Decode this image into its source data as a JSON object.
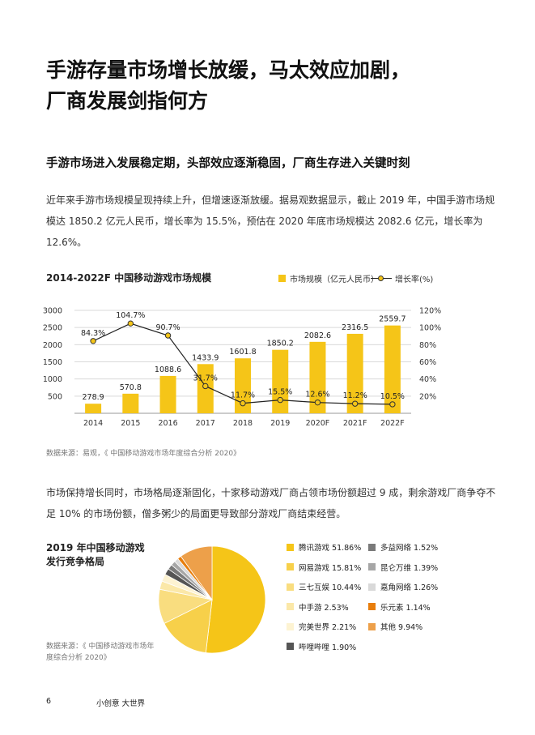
{
  "header": {
    "title_line1": "手游存量市场增长放缓，马太效应加剧，",
    "title_line2": "厂商发展剑指何方"
  },
  "section": {
    "subtitle": "手游市场进入发展稳定期，头部效应逐渐稳固，厂商生存进入关键时刻",
    "paragraph1": "近年来手游市场规模呈现持续上升，但增速逐渐放缓。据易观数据显示，截止 2019 年，中国手游市场规模达 1850.2 亿元人民币，增长率为 15.5%，预估在 2020 年底市场规模达 2082.6 亿元，增长率为 12.6%。",
    "source1": "数据来源：易观，《 中国移动游戏市场年度综合分析 2020》",
    "paragraph2": "市场保持增长同时，市场格局逐渐固化，十家移动游戏厂商占领市场份额超过 9 成，剩余游戏厂商争夺不足 10% 的市场份额，僧多粥少的局面更导致部分游戏厂商结束经营。",
    "source2": "数据来源：《 中国移动游戏市场年度综合分析 2020》"
  },
  "footer": {
    "page": "6",
    "slogan": "小创意  大世界"
  },
  "chart_data": [
    {
      "type": "bar",
      "title": "2014-2022F 中国移动游戏市场规模",
      "categories": [
        "2014",
        "2015",
        "2016",
        "2017",
        "2018",
        "2019",
        "2020F",
        "2021F",
        "2022F"
      ],
      "series": [
        {
          "name": "市场规模（亿元人民币）",
          "type": "bar",
          "axis": "left",
          "values": [
            278.9,
            570.8,
            1088.6,
            1433.9,
            1601.8,
            1850.2,
            2082.6,
            2316.5,
            2559.7
          ],
          "labels": [
            "278.9",
            "570.8",
            "1088.6",
            "1433.9",
            "1601.8",
            "1850.2",
            "2082.6",
            "2316.5",
            "2559.7"
          ]
        },
        {
          "name": "增长率(%)",
          "type": "line",
          "axis": "right",
          "values": [
            84.3,
            104.7,
            90.7,
            31.7,
            11.7,
            15.5,
            12.6,
            11.2,
            10.5
          ],
          "labels": [
            "84.3%",
            "104.7%",
            "90.7%",
            "31.7%",
            "11.7%",
            "15.5%",
            "12.6%",
            "11.2%",
            "10.5%"
          ]
        }
      ],
      "y_left": {
        "ticks": [
          "500",
          "1000",
          "1500",
          "2000",
          "2500",
          "3000"
        ],
        "values": [
          500,
          1000,
          1500,
          2000,
          2500,
          3000
        ],
        "ylim": [
          0,
          3000
        ]
      },
      "y_right": {
        "ticks": [
          "20%",
          "40%",
          "60%",
          "80%",
          "100%",
          "120%"
        ],
        "values": [
          20,
          40,
          60,
          80,
          100,
          120
        ],
        "ylim": [
          0,
          120
        ]
      },
      "grid": true,
      "legend_position": "top-right",
      "colors": {
        "bar": "#f5c518",
        "line": "#222222",
        "marker": "#f5c518"
      }
    },
    {
      "type": "pie",
      "title": "2019 年中国移动游戏发行竞争格局",
      "title_lines": [
        "2019 年中国移动游戏",
        "发行竞争格局"
      ],
      "slices": [
        {
          "label": "腾讯游戏 51.86%",
          "value": 51.86,
          "color": "#f5c518"
        },
        {
          "label": "网易游戏 15.81%",
          "value": 15.81,
          "color": "#f7d04a"
        },
        {
          "label": "三七互娱 10.44%",
          "value": 10.44,
          "color": "#f9dd7f"
        },
        {
          "label": "中手游 2.53%",
          "value": 2.53,
          "color": "#fbe8a8"
        },
        {
          "label": "完美世界 2.21%",
          "value": 2.21,
          "color": "#fdf3d2"
        },
        {
          "label": "哔哩哔哩 1.90%",
          "value": 1.9,
          "color": "#555555"
        },
        {
          "label": "多益网络 1.52%",
          "value": 1.52,
          "color": "#7a7a7a"
        },
        {
          "label": "昆仑万维 1.39%",
          "value": 1.39,
          "color": "#a6a6a6"
        },
        {
          "label": "嘉角网络 1.26%",
          "value": 1.26,
          "color": "#d9d9d9"
        },
        {
          "label": "乐元素 1.14%",
          "value": 1.14,
          "color": "#e87e0c"
        },
        {
          "label": "其他 9.94%",
          "value": 9.94,
          "color": "#eda04a"
        }
      ]
    }
  ]
}
